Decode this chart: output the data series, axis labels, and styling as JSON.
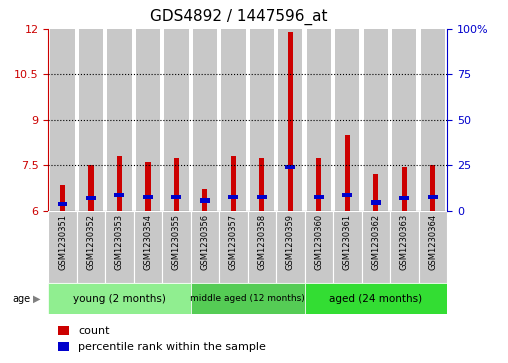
{
  "title": "GDS4892 / 1447596_at",
  "samples": [
    "GSM1230351",
    "GSM1230352",
    "GSM1230353",
    "GSM1230354",
    "GSM1230355",
    "GSM1230356",
    "GSM1230357",
    "GSM1230358",
    "GSM1230359",
    "GSM1230360",
    "GSM1230361",
    "GSM1230362",
    "GSM1230363",
    "GSM1230364"
  ],
  "count_values": [
    6.85,
    7.5,
    7.8,
    7.6,
    7.75,
    6.7,
    7.8,
    7.75,
    11.9,
    7.75,
    8.5,
    7.2,
    7.45,
    7.5
  ],
  "percentile_values": [
    3.5,
    7.0,
    8.5,
    7.5,
    7.5,
    5.5,
    7.5,
    7.5,
    24.0,
    7.5,
    8.5,
    4.5,
    7.0,
    7.5
  ],
  "ymin": 6.0,
  "ymax": 12.0,
  "yticks_left": [
    6,
    7.5,
    9,
    10.5,
    12
  ],
  "yticks_right": [
    0,
    25,
    50,
    75,
    100
  ],
  "groups": [
    {
      "label": "young (2 months)",
      "start": 0,
      "end": 4,
      "color": "#90EE90"
    },
    {
      "label": "middle aged (12 months)",
      "start": 5,
      "end": 8,
      "color": "#55CC55"
    },
    {
      "label": "aged (24 months)",
      "start": 9,
      "end": 13,
      "color": "#33DD33"
    }
  ],
  "count_color": "#CC0000",
  "percentile_color": "#0000CC",
  "bar_bg_color": "#C8C8C8",
  "base_value": 6.0,
  "percentile_scale_max": 100,
  "left_axis_color": "#CC0000",
  "right_axis_color": "#0000CC",
  "title_fontsize": 11,
  "tick_fontsize": 7,
  "label_fontsize": 8,
  "grid_lines": [
    7.5,
    9.0,
    10.5
  ]
}
